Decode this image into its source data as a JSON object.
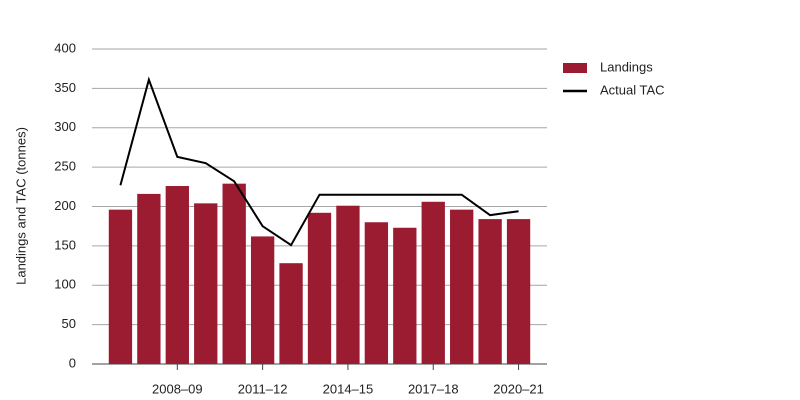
{
  "chart_data": {
    "type": "bar_line",
    "ylabel": "Landings and TAC (tonnes)",
    "categories": [
      null,
      null,
      "2008–09",
      null,
      null,
      "2011–12",
      null,
      null,
      "2014–15",
      null,
      null,
      "2017–18",
      null,
      null,
      "2020–21"
    ],
    "series": [
      {
        "name": "Landings",
        "type": "bar",
        "color": "#9b1b30",
        "values": [
          196,
          216,
          226,
          204,
          229,
          162,
          128,
          192,
          201,
          180,
          173,
          206,
          196,
          184,
          184
        ]
      },
      {
        "name": "Actual TAC",
        "type": "line",
        "color": "#000000",
        "values": [
          227,
          361,
          263,
          255,
          232,
          175,
          151,
          215,
          215,
          215,
          215,
          215,
          215,
          189,
          194
        ]
      }
    ],
    "ylim": [
      0,
      400
    ],
    "yticks": [
      0,
      50,
      100,
      150,
      200,
      250,
      300,
      350,
      400
    ],
    "grid": true,
    "legend": "right"
  }
}
